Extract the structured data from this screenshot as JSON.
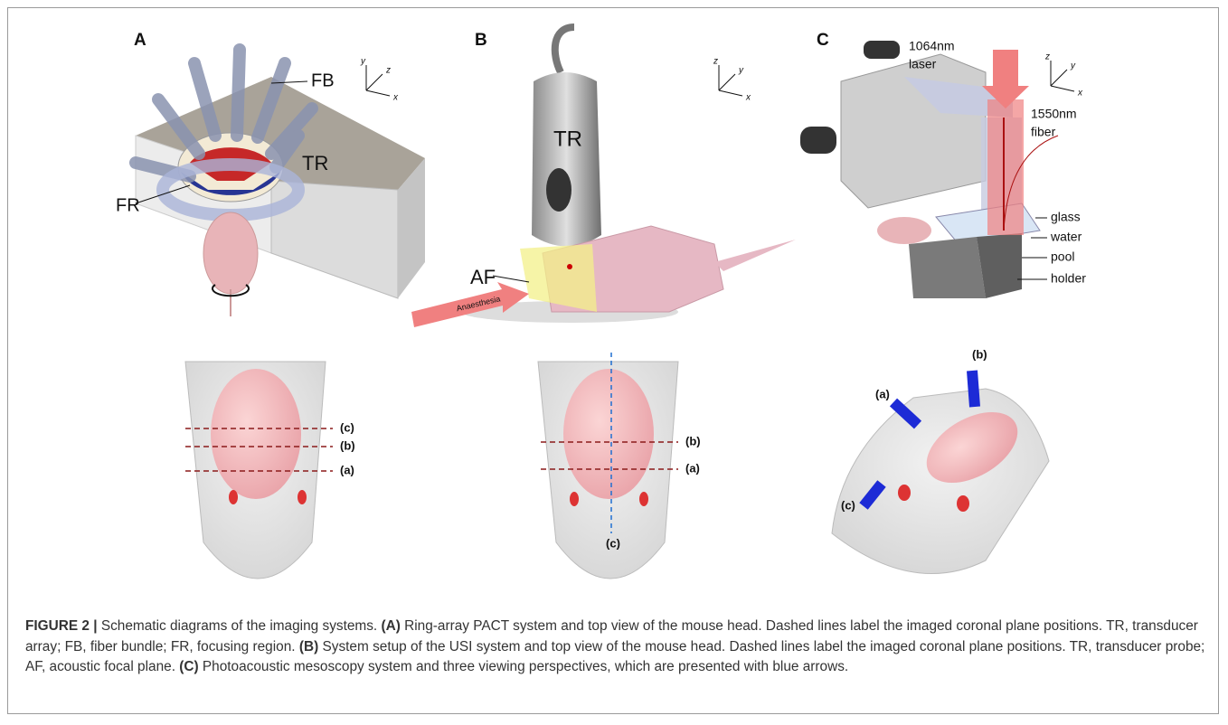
{
  "panels": [
    {
      "letter": "A",
      "axes": [
        "y",
        "z",
        "x"
      ],
      "labels": [
        "FB",
        "TR",
        "FR"
      ],
      "planes": [
        "(c)",
        "(b)",
        "(a)"
      ]
    },
    {
      "letter": "B",
      "axes": [
        "z",
        "y",
        "x"
      ],
      "labels": [
        "TR",
        "AF",
        "Anaesthesia"
      ],
      "planes": [
        "(b)",
        "(a)",
        "(c)"
      ]
    },
    {
      "letter": "C",
      "axes": [
        "z",
        "y",
        "x"
      ],
      "labels": [
        "1064nm",
        "laser",
        "1550nm",
        "fiber",
        "glass",
        "water",
        "pool",
        "holder"
      ],
      "planes": [
        "(b)",
        "(a)",
        "(c)"
      ]
    }
  ],
  "caption": [
    {
      "text": "FIGURE 2 |",
      "bold": true
    },
    {
      "text": " Schematic diagrams of the imaging systems. ",
      "bold": false
    },
    {
      "text": "(A)",
      "bold": true
    },
    {
      "text": " Ring-array PACT system and top view of the mouse head. Dashed lines label the imaged coronal plane positions. TR, transducer array; FB, fiber bundle; FR, focusing region. ",
      "bold": false
    },
    {
      "text": "(B)",
      "bold": true
    },
    {
      "text": " System setup of the USI system and top view of the mouse head. Dashed lines label the imaged coronal plane positions. TR, transducer probe; AF, acoustic focal plane. ",
      "bold": false
    },
    {
      "text": "(C)",
      "bold": true
    },
    {
      "text": " Photoacoustic mesoscopy system and three viewing perspectives, which are presented with blue arrows.",
      "bold": false
    }
  ]
}
